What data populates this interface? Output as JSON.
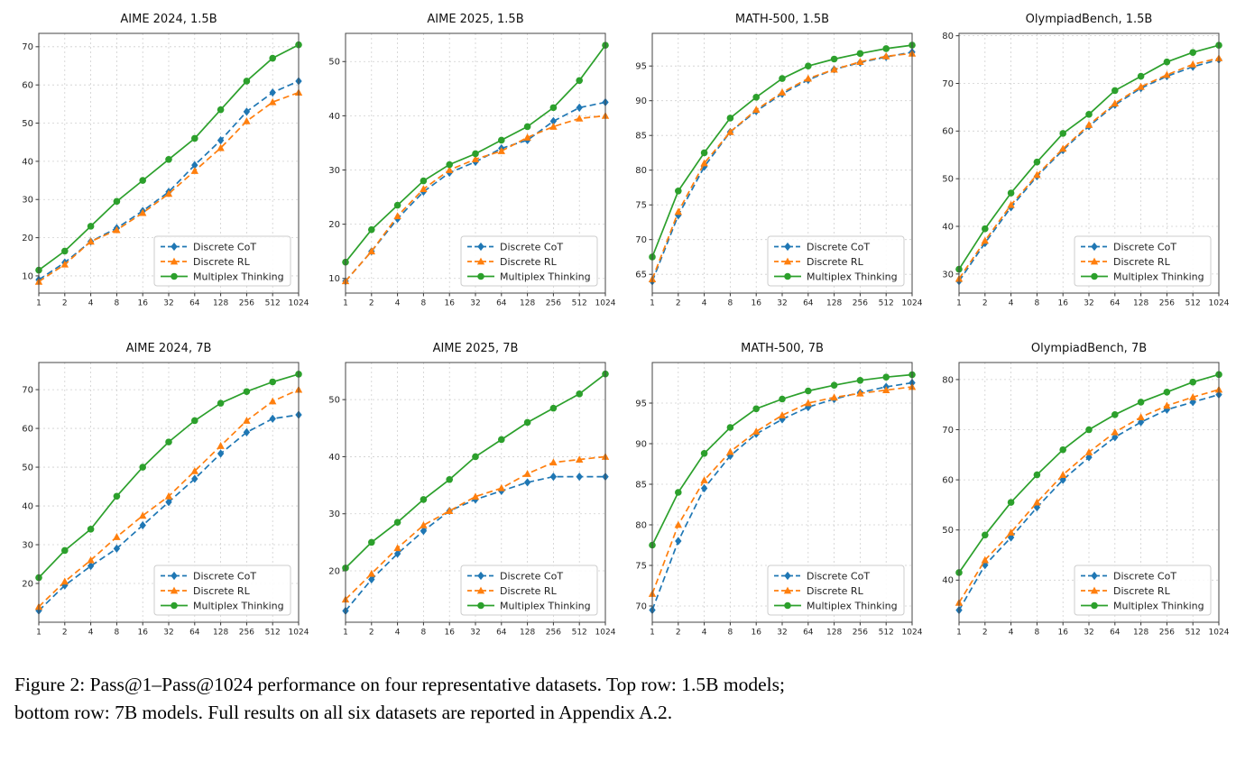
{
  "colors": {
    "discrete_cot": "#1f77b4",
    "discrete_rl": "#ff7f0e",
    "multiplex_thinking": "#2ca02c"
  },
  "caption": {
    "line1": "Figure 2: Pass@1–Pass@1024 performance on four representative datasets. Top row: 1.5B models;",
    "line2": "bottom row: 7B models. Full results on all six datasets are reported in Appendix A.2."
  },
  "chart_data": [
    {
      "type": "line",
      "title": "AIME 2024, 1.5B",
      "x": [
        1,
        2,
        4,
        8,
        16,
        32,
        64,
        128,
        256,
        512,
        1024
      ],
      "ylim": [
        5.5,
        73.5
      ],
      "yticks": [
        10,
        20,
        30,
        40,
        50,
        60,
        70
      ],
      "legend_position": "lower right",
      "grid": true,
      "series": [
        {
          "name": "Discrete CoT",
          "color": "#1f77b4",
          "dash": true,
          "marker": "diamond",
          "values": [
            9,
            13.5,
            19,
            22.5,
            27,
            32,
            39,
            45.5,
            53,
            58,
            61
          ]
        },
        {
          "name": "Discrete RL",
          "color": "#ff7f0e",
          "dash": true,
          "marker": "triangle",
          "values": [
            8.5,
            13,
            19,
            22,
            26.5,
            31.5,
            37.5,
            43.5,
            50.5,
            55.5,
            58
          ]
        },
        {
          "name": "Multiplex Thinking",
          "color": "#2ca02c",
          "dash": false,
          "marker": "circle",
          "values": [
            11.5,
            16.5,
            23,
            29.5,
            35,
            40.5,
            46,
            53.5,
            61,
            67,
            70.5
          ]
        }
      ]
    },
    {
      "type": "line",
      "title": "AIME 2025, 1.5B",
      "x": [
        1,
        2,
        4,
        8,
        16,
        32,
        64,
        128,
        256,
        512,
        1024
      ],
      "ylim": [
        7.3,
        55.2
      ],
      "yticks": [
        10,
        20,
        30,
        40,
        50
      ],
      "legend_position": "lower right",
      "grid": true,
      "series": [
        {
          "name": "Discrete CoT",
          "color": "#1f77b4",
          "dash": true,
          "marker": "diamond",
          "values": [
            9.5,
            15,
            21,
            26,
            29.5,
            31.5,
            34,
            35.5,
            39,
            41.5,
            42.5
          ]
        },
        {
          "name": "Discrete RL",
          "color": "#ff7f0e",
          "dash": true,
          "marker": "triangle",
          "values": [
            9.5,
            15,
            21.5,
            26.5,
            30,
            32,
            33.5,
            36,
            38,
            39.5,
            40
          ]
        },
        {
          "name": "Multiplex Thinking",
          "color": "#2ca02c",
          "dash": false,
          "marker": "circle",
          "values": [
            13,
            19,
            23.5,
            28,
            31,
            33,
            35.5,
            38,
            41.5,
            46.5,
            53
          ]
        }
      ]
    },
    {
      "type": "line",
      "title": "MATH-500, 1.5B",
      "x": [
        1,
        2,
        4,
        8,
        16,
        32,
        64,
        128,
        256,
        512,
        1024
      ],
      "ylim": [
        62.3,
        99.7
      ],
      "yticks": [
        65,
        70,
        75,
        80,
        85,
        90,
        95
      ],
      "legend_position": "lower right",
      "grid": true,
      "series": [
        {
          "name": "Discrete CoT",
          "color": "#1f77b4",
          "dash": true,
          "marker": "diamond",
          "values": [
            64,
            73.5,
            80.5,
            85.5,
            88.5,
            91,
            93,
            94.5,
            95.5,
            96.3,
            97
          ]
        },
        {
          "name": "Discrete RL",
          "color": "#ff7f0e",
          "dash": true,
          "marker": "triangle",
          "values": [
            64.3,
            74,
            81,
            85.5,
            88.7,
            91.2,
            93.2,
            94.5,
            95.6,
            96.4,
            96.8
          ]
        },
        {
          "name": "Multiplex Thinking",
          "color": "#2ca02c",
          "dash": false,
          "marker": "circle",
          "values": [
            67.5,
            77,
            82.5,
            87.5,
            90.5,
            93.2,
            95,
            96,
            96.8,
            97.5,
            98
          ]
        }
      ]
    },
    {
      "type": "line",
      "title": "OlympiadBench, 1.5B",
      "x": [
        1,
        2,
        4,
        8,
        16,
        32,
        64,
        128,
        256,
        512,
        1024
      ],
      "ylim": [
        26,
        80.5
      ],
      "yticks": [
        30,
        40,
        50,
        60,
        70,
        80
      ],
      "legend_position": "lower right",
      "grid": true,
      "series": [
        {
          "name": "Discrete CoT",
          "color": "#1f77b4",
          "dash": true,
          "marker": "diamond",
          "values": [
            28.5,
            36.5,
            44,
            50.5,
            56,
            61,
            65.5,
            69,
            71.5,
            73.5,
            75
          ]
        },
        {
          "name": "Discrete RL",
          "color": "#ff7f0e",
          "dash": true,
          "marker": "triangle",
          "values": [
            29,
            37,
            44.5,
            50.8,
            56.3,
            61.3,
            65.8,
            69.3,
            71.8,
            74,
            75.3
          ]
        },
        {
          "name": "Multiplex Thinking",
          "color": "#2ca02c",
          "dash": false,
          "marker": "circle",
          "values": [
            31,
            39.5,
            47,
            53.5,
            59.5,
            63.5,
            68.5,
            71.5,
            74.5,
            76.5,
            78
          ]
        }
      ]
    },
    {
      "type": "line",
      "title": "AIME 2024, 7B",
      "x": [
        1,
        2,
        4,
        8,
        16,
        32,
        64,
        128,
        256,
        512,
        1024
      ],
      "ylim": [
        10,
        77
      ],
      "yticks": [
        20,
        30,
        40,
        50,
        60,
        70
      ],
      "legend_position": "lower right",
      "grid": true,
      "series": [
        {
          "name": "Discrete CoT",
          "color": "#1f77b4",
          "dash": true,
          "marker": "diamond",
          "values": [
            13,
            19.5,
            24.5,
            29,
            35,
            41,
            47,
            53.5,
            59,
            62.5,
            63.5
          ]
        },
        {
          "name": "Discrete RL",
          "color": "#ff7f0e",
          "dash": true,
          "marker": "triangle",
          "values": [
            14,
            20.5,
            26,
            32,
            37.5,
            42.5,
            49,
            55.5,
            62,
            67,
            70
          ]
        },
        {
          "name": "Multiplex Thinking",
          "color": "#2ca02c",
          "dash": false,
          "marker": "circle",
          "values": [
            21.5,
            28.5,
            34,
            42.5,
            50,
            56.5,
            62,
            66.5,
            69.5,
            72,
            74
          ]
        }
      ]
    },
    {
      "type": "line",
      "title": "AIME 2025, 7B",
      "x": [
        1,
        2,
        4,
        8,
        16,
        32,
        64,
        128,
        256,
        512,
        1024
      ],
      "ylim": [
        11,
        56.5
      ],
      "yticks": [
        20,
        30,
        40,
        50
      ],
      "legend_position": "lower right",
      "grid": true,
      "series": [
        {
          "name": "Discrete CoT",
          "color": "#1f77b4",
          "dash": true,
          "marker": "diamond",
          "values": [
            13,
            18.5,
            23,
            27,
            30.5,
            32.5,
            34,
            35.5,
            36.5,
            36.5,
            36.5
          ]
        },
        {
          "name": "Discrete RL",
          "color": "#ff7f0e",
          "dash": true,
          "marker": "triangle",
          "values": [
            15,
            19.5,
            24,
            28,
            30.5,
            33,
            34.5,
            37,
            39,
            39.5,
            40
          ]
        },
        {
          "name": "Multiplex Thinking",
          "color": "#2ca02c",
          "dash": false,
          "marker": "circle",
          "values": [
            20.5,
            25,
            28.5,
            32.5,
            36,
            40,
            43,
            46,
            48.5,
            51,
            54.5
          ]
        }
      ]
    },
    {
      "type": "line",
      "title": "MATH-500, 7B",
      "x": [
        1,
        2,
        4,
        8,
        16,
        32,
        64,
        128,
        256,
        512,
        1024
      ],
      "ylim": [
        68,
        100
      ],
      "yticks": [
        70,
        75,
        80,
        85,
        90,
        95
      ],
      "legend_position": "lower right",
      "grid": true,
      "series": [
        {
          "name": "Discrete CoT",
          "color": "#1f77b4",
          "dash": true,
          "marker": "diamond",
          "values": [
            69.5,
            78,
            84.5,
            88.5,
            91.2,
            93,
            94.5,
            95.5,
            96.3,
            97,
            97.5
          ]
        },
        {
          "name": "Discrete RL",
          "color": "#ff7f0e",
          "dash": true,
          "marker": "triangle",
          "values": [
            71.5,
            80,
            85.5,
            89,
            91.5,
            93.5,
            95,
            95.7,
            96.2,
            96.6,
            97
          ]
        },
        {
          "name": "Multiplex Thinking",
          "color": "#2ca02c",
          "dash": false,
          "marker": "circle",
          "values": [
            77.5,
            84,
            88.8,
            92,
            94.3,
            95.5,
            96.5,
            97.2,
            97.8,
            98.2,
            98.5
          ]
        }
      ]
    },
    {
      "type": "line",
      "title": "OlympiadBench, 7B",
      "x": [
        1,
        2,
        4,
        8,
        16,
        32,
        64,
        128,
        256,
        512,
        1024
      ],
      "ylim": [
        31.6,
        83.4
      ],
      "yticks": [
        40,
        50,
        60,
        70,
        80
      ],
      "legend_position": "lower right",
      "grid": true,
      "series": [
        {
          "name": "Discrete CoT",
          "color": "#1f77b4",
          "dash": true,
          "marker": "diamond",
          "values": [
            34,
            43,
            48.5,
            54.5,
            60,
            64.5,
            68.5,
            71.5,
            74,
            75.5,
            77
          ]
        },
        {
          "name": "Discrete RL",
          "color": "#ff7f0e",
          "dash": true,
          "marker": "triangle",
          "values": [
            35.5,
            44,
            49.5,
            55.5,
            61,
            65.5,
            69.5,
            72.5,
            74.8,
            76.5,
            78
          ]
        },
        {
          "name": "Multiplex Thinking",
          "color": "#2ca02c",
          "dash": false,
          "marker": "circle",
          "values": [
            41.5,
            49,
            55.5,
            61,
            66,
            70,
            73,
            75.5,
            77.5,
            79.5,
            81
          ]
        }
      ]
    }
  ]
}
